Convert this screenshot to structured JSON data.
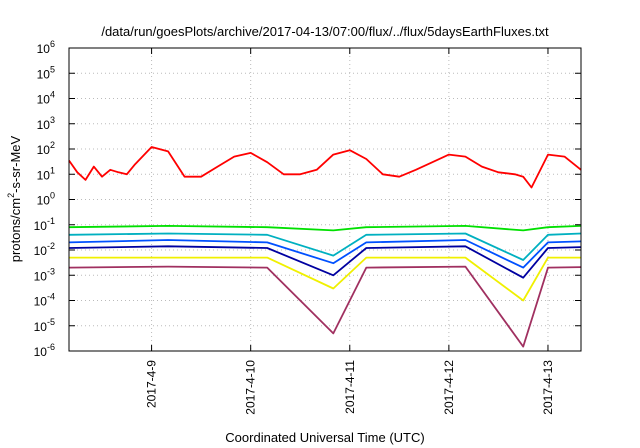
{
  "chart_data": {
    "type": "line",
    "title": "/data/run/goesPlots/archive/2017-04-13/07:00/flux/../flux/5daysEarthFluxes.txt",
    "ylabel": "protons/cm²-s-sr-MeV",
    "ylabel_parts": {
      "base": "protons/cm",
      "sup": "2",
      "rest": "-s-sr-MeV"
    },
    "xlabel": "Coordinated Universal Time (UTC)",
    "yscale": "log",
    "ylim": [
      1e-06,
      1000000.0
    ],
    "yticks": [
      {
        "base": "10",
        "exp": "-6",
        "value": 1e-06
      },
      {
        "base": "10",
        "exp": "-5",
        "value": 1e-05
      },
      {
        "base": "10",
        "exp": "-4",
        "value": 0.0001
      },
      {
        "base": "10",
        "exp": "-3",
        "value": 0.001
      },
      {
        "base": "10",
        "exp": "-2",
        "value": 0.01
      },
      {
        "base": "10",
        "exp": "-1",
        "value": 0.1
      },
      {
        "base": "10",
        "exp": "0",
        "value": 1
      },
      {
        "base": "10",
        "exp": "1",
        "value": 10
      },
      {
        "base": "10",
        "exp": "2",
        "value": 100
      },
      {
        "base": "10",
        "exp": "3",
        "value": 1000.0
      },
      {
        "base": "10",
        "exp": "4",
        "value": 10000.0
      },
      {
        "base": "10",
        "exp": "5",
        "value": 100000.0
      },
      {
        "base": "10",
        "exp": "6",
        "value": 1000000.0
      }
    ],
    "xlim": [
      "2017-04-08 04:00",
      "2017-04-13 08:00"
    ],
    "xticks": [
      "2017-4-9",
      "2017-4-10",
      "2017-4-11",
      "2017-4-12",
      "2017-4-13"
    ],
    "grid": true,
    "series": [
      {
        "color": "#ff0000",
        "x": [
          "2017-04-08 04:00",
          "2017-04-08 06:00",
          "2017-04-08 08:00",
          "2017-04-08 10:00",
          "2017-04-08 12:00",
          "2017-04-08 14:00",
          "2017-04-08 16:00",
          "2017-04-08 18:00",
          "2017-04-08 20:00",
          "2017-04-09 00:00",
          "2017-04-09 04:00",
          "2017-04-09 08:00",
          "2017-04-09 12:00",
          "2017-04-09 16:00",
          "2017-04-09 20:00",
          "2017-04-10 00:00",
          "2017-04-10 04:00",
          "2017-04-10 08:00",
          "2017-04-10 12:00",
          "2017-04-10 16:00",
          "2017-04-10 20:00",
          "2017-04-11 00:00",
          "2017-04-11 04:00",
          "2017-04-11 08:00",
          "2017-04-11 12:00",
          "2017-04-11 16:00",
          "2017-04-11 20:00",
          "2017-04-12 00:00",
          "2017-04-12 04:00",
          "2017-04-12 08:00",
          "2017-04-12 12:00",
          "2017-04-12 16:00",
          "2017-04-12 18:00",
          "2017-04-12 20:00",
          "2017-04-13 00:00",
          "2017-04-13 04:00",
          "2017-04-13 08:00"
        ],
        "y": [
          35,
          12,
          6,
          20,
          8,
          15,
          12,
          10,
          25,
          120,
          80,
          8,
          8,
          20,
          50,
          70,
          30,
          10,
          10,
          15,
          60,
          90,
          40,
          10,
          8,
          15,
          30,
          60,
          50,
          20,
          12,
          10,
          8,
          3,
          60,
          50,
          15
        ]
      },
      {
        "color": "#00e000",
        "x": [
          "2017-04-08 04:00",
          "2017-04-09 04:00",
          "2017-04-10 04:00",
          "2017-04-10 20:00",
          "2017-04-11 04:00",
          "2017-04-12 04:00",
          "2017-04-12 18:00",
          "2017-04-13 00:00",
          "2017-04-13 08:00"
        ],
        "y": [
          0.08,
          0.09,
          0.08,
          0.06,
          0.08,
          0.09,
          0.06,
          0.08,
          0.09
        ]
      },
      {
        "color": "#00b0c0",
        "x": [
          "2017-04-08 04:00",
          "2017-04-09 04:00",
          "2017-04-10 04:00",
          "2017-04-10 20:00",
          "2017-04-11 04:00",
          "2017-04-12 04:00",
          "2017-04-12 18:00",
          "2017-04-13 00:00",
          "2017-04-13 08:00"
        ],
        "y": [
          0.04,
          0.045,
          0.04,
          0.006,
          0.04,
          0.045,
          0.004,
          0.04,
          0.045
        ]
      },
      {
        "color": "#0050ff",
        "x": [
          "2017-04-08 04:00",
          "2017-04-09 04:00",
          "2017-04-10 04:00",
          "2017-04-10 20:00",
          "2017-04-11 04:00",
          "2017-04-12 04:00",
          "2017-04-12 18:00",
          "2017-04-13 00:00",
          "2017-04-13 08:00"
        ],
        "y": [
          0.02,
          0.025,
          0.02,
          0.003,
          0.02,
          0.025,
          0.002,
          0.02,
          0.022
        ]
      },
      {
        "color": "#0000a0",
        "x": [
          "2017-04-08 04:00",
          "2017-04-09 04:00",
          "2017-04-10 04:00",
          "2017-04-10 20:00",
          "2017-04-11 04:00",
          "2017-04-12 04:00",
          "2017-04-12 18:00",
          "2017-04-13 00:00",
          "2017-04-13 08:00"
        ],
        "y": [
          0.012,
          0.014,
          0.012,
          0.001,
          0.012,
          0.014,
          0.0008,
          0.012,
          0.013
        ]
      },
      {
        "color": "#f0f000",
        "x": [
          "2017-04-08 04:00",
          "2017-04-09 04:00",
          "2017-04-10 04:00",
          "2017-04-10 20:00",
          "2017-04-11 04:00",
          "2017-04-12 04:00",
          "2017-04-12 18:00",
          "2017-04-13 00:00",
          "2017-04-13 08:00"
        ],
        "y": [
          0.005,
          0.005,
          0.005,
          0.0003,
          0.005,
          0.005,
          0.0001,
          0.005,
          0.005
        ]
      },
      {
        "color": "#a03060",
        "x": [
          "2017-04-08 04:00",
          "2017-04-09 04:00",
          "2017-04-10 04:00",
          "2017-04-10 20:00",
          "2017-04-11 04:00",
          "2017-04-12 04:00",
          "2017-04-12 18:00",
          "2017-04-13 00:00",
          "2017-04-13 08:00"
        ],
        "y": [
          0.002,
          0.0022,
          0.002,
          5e-06,
          0.002,
          0.0022,
          1.5e-06,
          0.002,
          0.0021
        ]
      }
    ]
  }
}
